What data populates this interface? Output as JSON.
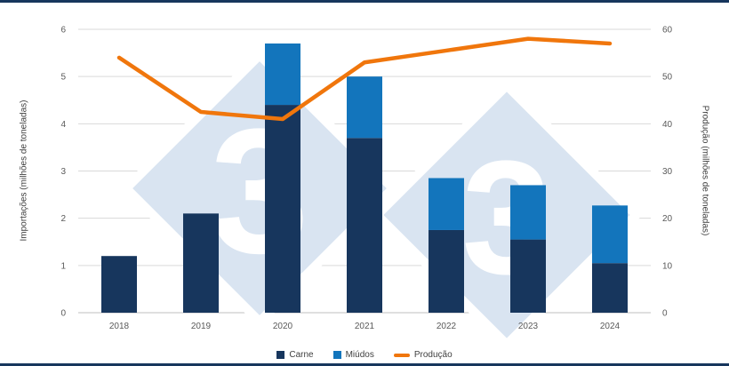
{
  "watermark": {
    "glyph": "3",
    "color": "#d9e4f1"
  },
  "chart_data": {
    "type": "stacked-bar+line",
    "title": "",
    "categories": [
      "2018",
      "2019",
      "2020",
      "2021",
      "2022",
      "2023",
      "2024"
    ],
    "series": [
      {
        "name": "Carne",
        "type": "bar",
        "stack": "importacoes",
        "axis": "left",
        "color": "#17365d",
        "values": [
          1.2,
          2.1,
          4.4,
          3.7,
          1.75,
          1.55,
          1.05
        ]
      },
      {
        "name": "Miúdos",
        "type": "bar",
        "stack": "importacoes",
        "axis": "left",
        "color": "#1375bc",
        "values": [
          0,
          0,
          1.3,
          1.3,
          1.1,
          1.15,
          1.22
        ]
      },
      {
        "name": "Produção",
        "type": "line",
        "axis": "right",
        "color": "#f0760c",
        "values": [
          54,
          42.5,
          41,
          53,
          55.5,
          58,
          57
        ]
      }
    ],
    "left_axis": {
      "label": "Importações (milhões de toneladas)",
      "min": 0,
      "max": 6,
      "ticks": [
        0,
        1,
        2,
        3,
        4,
        5,
        6
      ]
    },
    "right_axis": {
      "label": "Produção (milhões de toneladas)",
      "min": 0,
      "max": 60,
      "ticks": [
        0,
        10,
        20,
        30,
        40,
        50,
        60
      ]
    },
    "grid": true,
    "gridline_color": "#d9d9d9",
    "baseline_color": "#bfbfbf",
    "legend_position": "bottom",
    "border_color": "#17365d"
  }
}
